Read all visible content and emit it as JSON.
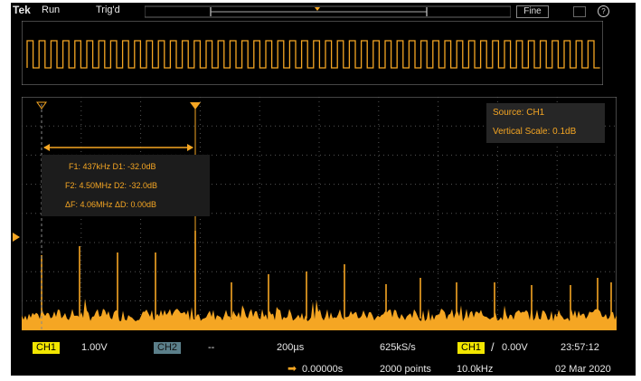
{
  "top_bar": {
    "brand": "Tek",
    "run_state": "Run",
    "trigger_state": "Trig'd",
    "fine_label": "Fine",
    "help_icon": "help-circle-icon",
    "snapshot_icon": "camera-icon"
  },
  "measurement_box": {
    "line1": "F1: 437kHz  D1: -32.0dB",
    "line2": "F2: 4.50MHz  D2: -32.0dB",
    "line3": "ΔF: 4.06MHz  ΔD: 0.00dB"
  },
  "info_box": {
    "source": "Source: CH1",
    "vscale": "Vertical Scale: 0.1dB"
  },
  "bottom_bar": {
    "ch1_label": "CH1",
    "ch1_scale": "1.00V",
    "ch2_label": "CH2",
    "ch2_value": "--",
    "horizontal_scale": "200µs",
    "sample_rate": "625kS/s",
    "trigger_source": "CH1",
    "trigger_slope": "/",
    "trigger_level": "0.00V",
    "time": "23:57:12",
    "position": "0.00000s",
    "record_length": "2000 points",
    "freq": "10.0kHz",
    "date": "02 Mar 2020"
  },
  "colors": {
    "trace": "#f5a623",
    "ch1_badge": "#f2e600",
    "ch2_badge": "#5b7f8a",
    "background": "#000000"
  }
}
